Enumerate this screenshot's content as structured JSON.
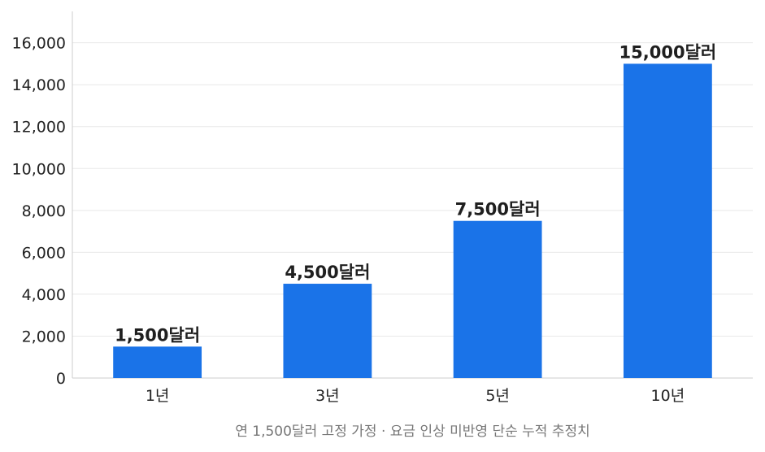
{
  "chart_data": {
    "type": "bar",
    "categories": [
      "1년",
      "3년",
      "5년",
      "10년"
    ],
    "values": [
      1500,
      4500,
      7500,
      15000
    ],
    "data_labels": [
      "1,500달러",
      "4,500달러",
      "7,500달러",
      "15,000달러"
    ],
    "y_ticks": [
      0,
      2000,
      4000,
      6000,
      8000,
      10000,
      12000,
      14000,
      16000
    ],
    "y_tick_labels": [
      "0",
      "2,000",
      "4,000",
      "6,000",
      "8,000",
      "10,000",
      "12,000",
      "14,000",
      "16,000"
    ],
    "ylim": [
      0,
      17500
    ],
    "grid": true,
    "bar_color": "#1a73e8",
    "caption": "연 1,500달러 고정 가정 · 요금 인상 미반영 단순 누적 추정치"
  }
}
